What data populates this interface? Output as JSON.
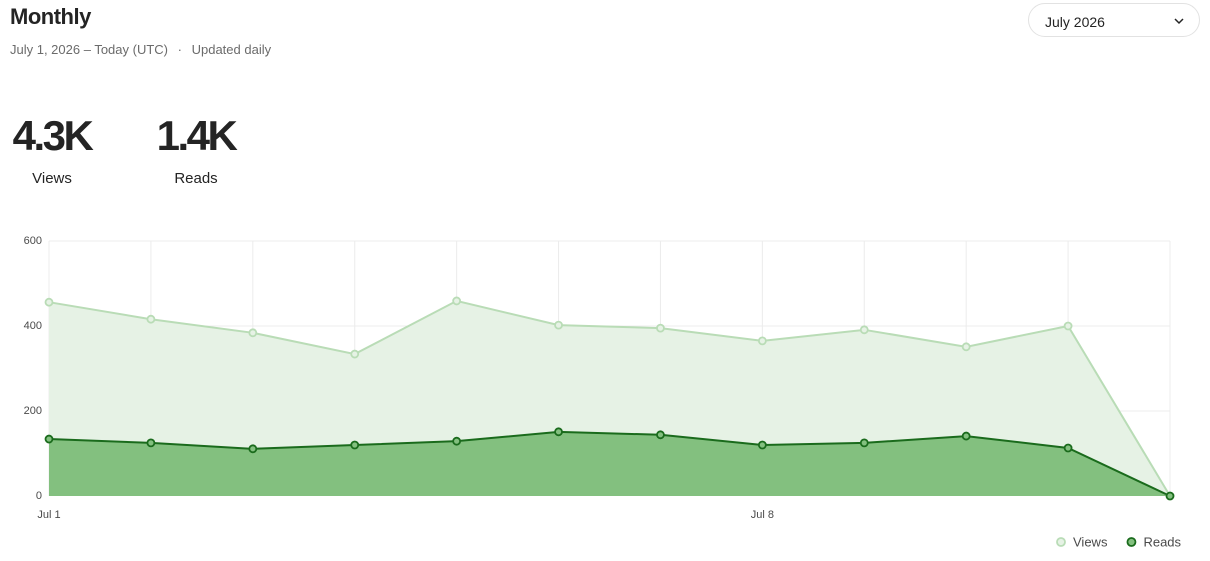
{
  "header": {
    "title": "Monthly",
    "date_range": "July 1, 2026 – Today (UTC)",
    "separator": "·",
    "update_note": "Updated daily"
  },
  "dropdown": {
    "label": "July 2026"
  },
  "stats": [
    {
      "value": "4.3K",
      "label": "Views"
    },
    {
      "value": "1.4K",
      "label": "Reads"
    }
  ],
  "chart_data": {
    "type": "area",
    "categories": [
      "Jul 1",
      null,
      null,
      null,
      null,
      null,
      null,
      "Jul 8",
      null,
      null,
      null,
      null
    ],
    "series": [
      {
        "name": "Views",
        "color": "#b9dcb6",
        "fill": "#e6f2e5",
        "values": [
          456,
          416,
          384,
          334,
          459,
          402,
          395,
          365,
          391,
          351,
          400,
          0
        ]
      },
      {
        "name": "Reads",
        "color": "#1a6b1c",
        "fill": "#83c07f",
        "values": [
          134,
          125,
          111,
          120,
          129,
          151,
          144,
          120,
          125,
          141,
          113,
          0
        ]
      }
    ],
    "ylim": [
      0,
      600
    ],
    "yticks": [
      0,
      200,
      400,
      600
    ],
    "grid": true,
    "legend": "bottom-right"
  }
}
